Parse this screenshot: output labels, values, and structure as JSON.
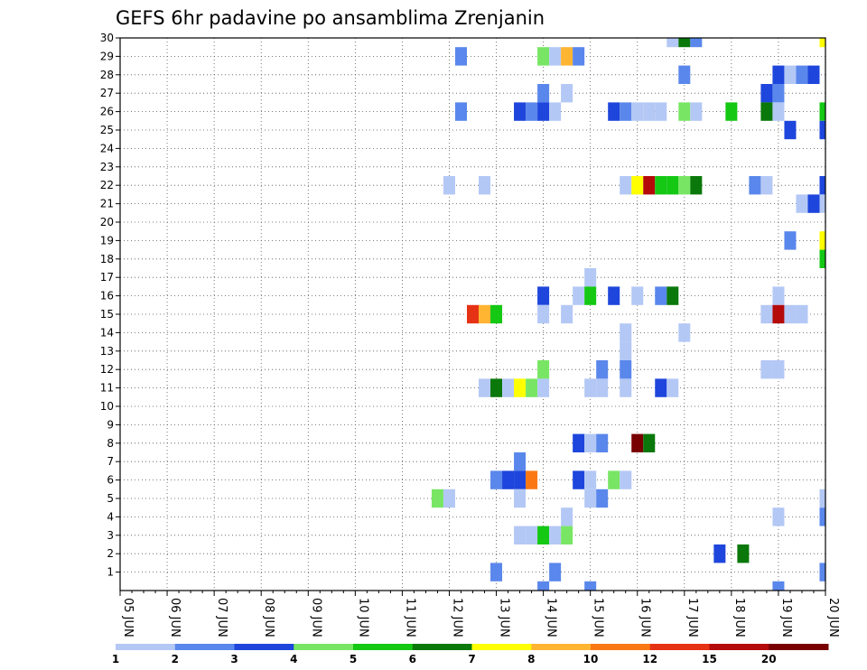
{
  "chart_data": {
    "type": "heatmap",
    "title": "GEFS 6hr padavine po ansamblima Zrenjanin",
    "xlabel": "",
    "ylabel": "",
    "x_tick_labels": [
      "05 JUN",
      "06 JUN",
      "07 JUN",
      "08 JUN",
      "09 JUN",
      "10 JUN",
      "11 JUN",
      "12 JUN",
      "13 JUN",
      "14 JUN",
      "15 JUN",
      "16 JUN",
      "17 JUN",
      "18 JUN",
      "19 JUN",
      "20 JUN"
    ],
    "y_tick_labels": [
      1,
      2,
      3,
      4,
      5,
      6,
      7,
      8,
      9,
      10,
      11,
      12,
      13,
      14,
      15,
      16,
      17,
      18,
      19,
      20,
      21,
      22,
      23,
      24,
      25,
      26,
      27,
      28,
      29,
      30
    ],
    "x_step_hours": 6,
    "x_range_steps": [
      0,
      60
    ],
    "y_range": [
      0,
      30
    ],
    "grid": true,
    "colorbar": {
      "labels": [
        "1",
        "2",
        "3",
        "4",
        "5",
        "6",
        "7",
        "8",
        "10",
        "12",
        "15",
        "20"
      ],
      "colors": [
        "#b4c8f5",
        "#5a87eb",
        "#1e46dc",
        "#78e664",
        "#14c814",
        "#0a780a",
        "#ffff00",
        "#ffb432",
        "#fa7814",
        "#e63214",
        "#b40a0a",
        "#780000"
      ]
    },
    "cells_note": "Each cell: [member (y), 6-hour step index from 05 JUN 00Z (x), color class index]",
    "cells": [
      [
        30,
        47,
        0
      ],
      [
        30,
        48,
        5
      ],
      [
        30,
        49,
        1
      ],
      [
        30,
        60,
        6
      ],
      [
        29,
        29,
        1
      ],
      [
        29,
        36,
        3
      ],
      [
        29,
        37,
        0
      ],
      [
        29,
        38,
        7
      ],
      [
        29,
        39,
        1
      ],
      [
        28,
        48,
        1
      ],
      [
        28,
        56,
        2
      ],
      [
        28,
        57,
        0
      ],
      [
        28,
        58,
        1
      ],
      [
        28,
        59,
        2
      ],
      [
        27,
        36,
        1
      ],
      [
        27,
        38,
        0
      ],
      [
        27,
        55,
        2
      ],
      [
        27,
        56,
        1
      ],
      [
        26,
        29,
        1
      ],
      [
        26,
        34,
        2
      ],
      [
        26,
        35,
        1
      ],
      [
        26,
        36,
        2
      ],
      [
        26,
        37,
        0
      ],
      [
        26,
        42,
        2
      ],
      [
        26,
        43,
        1
      ],
      [
        26,
        44,
        0
      ],
      [
        26,
        45,
        0
      ],
      [
        26,
        46,
        0
      ],
      [
        26,
        48,
        3
      ],
      [
        26,
        49,
        0
      ],
      [
        26,
        52,
        4
      ],
      [
        26,
        55,
        5
      ],
      [
        26,
        56,
        0
      ],
      [
        26,
        60,
        4
      ],
      [
        25,
        57,
        2
      ],
      [
        25,
        60,
        2
      ],
      [
        22,
        28,
        0
      ],
      [
        22,
        31,
        0
      ],
      [
        22,
        43,
        0
      ],
      [
        22,
        44,
        6
      ],
      [
        22,
        45,
        10
      ],
      [
        22,
        46,
        4
      ],
      [
        22,
        47,
        4
      ],
      [
        22,
        48,
        3
      ],
      [
        22,
        49,
        5
      ],
      [
        22,
        54,
        1
      ],
      [
        22,
        55,
        0
      ],
      [
        22,
        60,
        2
      ],
      [
        21,
        58,
        0
      ],
      [
        21,
        59,
        2
      ],
      [
        21,
        60,
        0
      ],
      [
        19,
        57,
        1
      ],
      [
        19,
        60,
        6
      ],
      [
        18,
        60,
        4
      ],
      [
        17,
        40,
        0
      ],
      [
        16,
        36,
        2
      ],
      [
        16,
        39,
        0
      ],
      [
        16,
        40,
        4
      ],
      [
        16,
        42,
        2
      ],
      [
        16,
        44,
        0
      ],
      [
        16,
        46,
        1
      ],
      [
        16,
        47,
        5
      ],
      [
        16,
        56,
        0
      ],
      [
        15,
        30,
        9
      ],
      [
        15,
        31,
        7
      ],
      [
        15,
        32,
        4
      ],
      [
        15,
        36,
        0
      ],
      [
        15,
        38,
        0
      ],
      [
        15,
        55,
        0
      ],
      [
        15,
        56,
        10
      ],
      [
        15,
        57,
        0
      ],
      [
        15,
        58,
        0
      ],
      [
        14,
        43,
        0
      ],
      [
        14,
        48,
        0
      ],
      [
        13,
        43,
        0
      ],
      [
        12,
        36,
        3
      ],
      [
        12,
        41,
        1
      ],
      [
        12,
        43,
        1
      ],
      [
        12,
        55,
        0
      ],
      [
        12,
        56,
        0
      ],
      [
        11,
        31,
        0
      ],
      [
        11,
        32,
        5
      ],
      [
        11,
        33,
        0
      ],
      [
        11,
        34,
        6
      ],
      [
        11,
        35,
        3
      ],
      [
        11,
        36,
        0
      ],
      [
        11,
        40,
        0
      ],
      [
        11,
        41,
        0
      ],
      [
        11,
        43,
        0
      ],
      [
        11,
        46,
        2
      ],
      [
        11,
        47,
        0
      ],
      [
        8,
        39,
        2
      ],
      [
        8,
        40,
        0
      ],
      [
        8,
        41,
        1
      ],
      [
        8,
        44,
        11
      ],
      [
        8,
        45,
        5
      ],
      [
        7,
        34,
        1
      ],
      [
        6,
        32,
        1
      ],
      [
        6,
        33,
        2
      ],
      [
        6,
        34,
        2
      ],
      [
        6,
        35,
        8
      ],
      [
        6,
        39,
        2
      ],
      [
        6,
        40,
        0
      ],
      [
        6,
        42,
        3
      ],
      [
        6,
        43,
        0
      ],
      [
        5,
        27,
        3
      ],
      [
        5,
        28,
        0
      ],
      [
        5,
        34,
        0
      ],
      [
        5,
        40,
        0
      ],
      [
        5,
        41,
        1
      ],
      [
        5,
        60,
        0
      ],
      [
        4,
        38,
        0
      ],
      [
        4,
        56,
        0
      ],
      [
        4,
        60,
        1
      ],
      [
        3,
        34,
        0
      ],
      [
        3,
        35,
        0
      ],
      [
        3,
        36,
        4
      ],
      [
        3,
        37,
        0
      ],
      [
        3,
        38,
        3
      ],
      [
        2,
        51,
        2
      ],
      [
        2,
        53,
        5
      ],
      [
        1,
        32,
        1
      ],
      [
        1,
        37,
        1
      ],
      [
        1,
        60,
        1
      ],
      [
        0,
        36,
        1
      ],
      [
        0,
        40,
        1
      ],
      [
        0,
        56,
        1
      ]
    ]
  }
}
